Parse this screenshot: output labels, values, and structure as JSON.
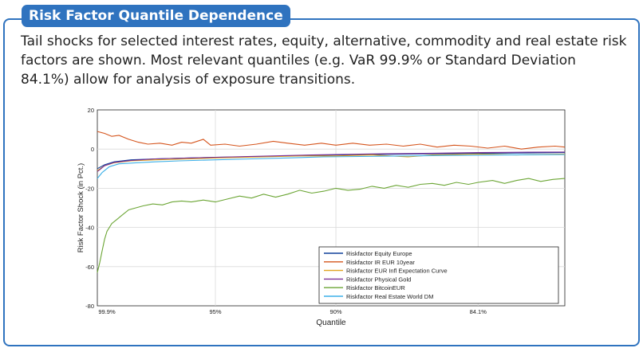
{
  "panel": {
    "title": "Risk Factor Quantile Dependence",
    "description": "Tail shocks for selected interest rates, equity, alternative, commodity and real estate risk factors are shown. Most relevant quantiles (e.g. VaR 99.9% or Standard Deviation 84.1%) allow for analysis of exposure transitions."
  },
  "chart_data": {
    "type": "line",
    "xlabel": "Quantile",
    "ylabel": "Risk Factor Shock (in Pct.)",
    "ylim": [
      -80,
      20
    ],
    "yticks": [
      20,
      0,
      -20,
      -40,
      -60,
      -80
    ],
    "xticks": [
      "99.9%",
      "95%",
      "90%",
      "84.1%"
    ],
    "grid": true,
    "legend_position": "bottom-right",
    "series": [
      {
        "name": "Riskfactor Equity Europe",
        "color": "#0f3f9a",
        "points": [
          [
            99.9,
            -10
          ],
          [
            99.6,
            -8
          ],
          [
            99.2,
            -6.5
          ],
          [
            98.5,
            -5.5
          ],
          [
            97.5,
            -5
          ],
          [
            96,
            -4.5
          ],
          [
            95,
            -4.2
          ],
          [
            93,
            -3.8
          ],
          [
            91,
            -3.3
          ],
          [
            90,
            -3
          ],
          [
            88,
            -2.7
          ],
          [
            86,
            -2.4
          ],
          [
            84.1,
            -2.2
          ],
          [
            82,
            -2
          ],
          [
            80.5,
            -1.8
          ]
        ]
      },
      {
        "name": "Riskfactor IR EUR 10year",
        "color": "#d5541c",
        "points": [
          [
            99.9,
            9
          ],
          [
            99.6,
            8
          ],
          [
            99.3,
            6.5
          ],
          [
            99,
            7
          ],
          [
            98.6,
            5
          ],
          [
            98.2,
            3.5
          ],
          [
            97.8,
            2.5
          ],
          [
            97.3,
            3
          ],
          [
            96.8,
            2
          ],
          [
            96.4,
            3.5
          ],
          [
            96,
            3
          ],
          [
            95.5,
            5
          ],
          [
            95.2,
            2
          ],
          [
            94.6,
            2.5
          ],
          [
            94,
            1.5
          ],
          [
            93.3,
            2.5
          ],
          [
            92.6,
            4
          ],
          [
            92,
            3
          ],
          [
            91.3,
            2
          ],
          [
            90.6,
            3
          ],
          [
            90,
            2
          ],
          [
            89.3,
            3
          ],
          [
            88.6,
            2
          ],
          [
            87.9,
            2.5
          ],
          [
            87.2,
            1.5
          ],
          [
            86.5,
            2.5
          ],
          [
            85.8,
            1
          ],
          [
            85.1,
            2
          ],
          [
            84.4,
            1.5
          ],
          [
            83.7,
            0.5
          ],
          [
            83,
            1.5
          ],
          [
            82.3,
            0
          ],
          [
            81.6,
            1
          ],
          [
            80.9,
            1.5
          ],
          [
            80.5,
            1
          ]
        ]
      },
      {
        "name": "Riskfactor EUR Infl Expectation Curve",
        "color": "#e0a320",
        "points": [
          [
            99.9,
            -11
          ],
          [
            99.6,
            -8.5
          ],
          [
            99.2,
            -7
          ],
          [
            98.5,
            -6
          ],
          [
            97.5,
            -5.5
          ],
          [
            96,
            -5
          ],
          [
            95,
            -4.5
          ],
          [
            93,
            -4
          ],
          [
            91.5,
            -3.5
          ],
          [
            90,
            -3.5
          ],
          [
            88.5,
            -3
          ],
          [
            87,
            -4
          ],
          [
            86,
            -3
          ],
          [
            84.1,
            -2.5
          ],
          [
            82.5,
            -3
          ],
          [
            80.5,
            -2.5
          ]
        ]
      },
      {
        "name": "Riskfactor Physical Gold",
        "color": "#7b2f96",
        "points": [
          [
            99.9,
            -11.5
          ],
          [
            99.6,
            -8.5
          ],
          [
            99.2,
            -6.8
          ],
          [
            98.5,
            -5.8
          ],
          [
            97.5,
            -5
          ],
          [
            96,
            -4.5
          ],
          [
            95,
            -4.2
          ],
          [
            93,
            -3.6
          ],
          [
            91,
            -3
          ],
          [
            90,
            -2.8
          ],
          [
            88,
            -2.4
          ],
          [
            86,
            -2.1
          ],
          [
            84.1,
            -1.8
          ],
          [
            82,
            -1.6
          ],
          [
            80.5,
            -1.5
          ]
        ]
      },
      {
        "name": "Riskfactor BitcoinEUR",
        "color": "#6ba534",
        "points": [
          [
            99.9,
            -63
          ],
          [
            99.8,
            -58
          ],
          [
            99.7,
            -52
          ],
          [
            99.6,
            -46
          ],
          [
            99.5,
            -42
          ],
          [
            99.3,
            -38
          ],
          [
            99.1,
            -36
          ],
          [
            98.9,
            -34
          ],
          [
            98.6,
            -31
          ],
          [
            98.3,
            -30
          ],
          [
            98,
            -29
          ],
          [
            97.6,
            -28
          ],
          [
            97.2,
            -28.5
          ],
          [
            96.8,
            -27
          ],
          [
            96.4,
            -26.5
          ],
          [
            96,
            -27
          ],
          [
            95.5,
            -26
          ],
          [
            95,
            -27
          ],
          [
            94.5,
            -25.5
          ],
          [
            94,
            -24
          ],
          [
            93.5,
            -25
          ],
          [
            93,
            -23
          ],
          [
            92.5,
            -24.5
          ],
          [
            92,
            -23
          ],
          [
            91.5,
            -21
          ],
          [
            91,
            -22.5
          ],
          [
            90.5,
            -21.5
          ],
          [
            90,
            -20
          ],
          [
            89.5,
            -21
          ],
          [
            89,
            -20.5
          ],
          [
            88.5,
            -19
          ],
          [
            88,
            -20
          ],
          [
            87.5,
            -18.5
          ],
          [
            87,
            -19.5
          ],
          [
            86.5,
            -18
          ],
          [
            86,
            -17.5
          ],
          [
            85.5,
            -18.5
          ],
          [
            85,
            -17
          ],
          [
            84.5,
            -18
          ],
          [
            84.1,
            -17
          ],
          [
            83.5,
            -16
          ],
          [
            83,
            -17.5
          ],
          [
            82.5,
            -16
          ],
          [
            82,
            -15
          ],
          [
            81.5,
            -16.5
          ],
          [
            81,
            -15.5
          ],
          [
            80.5,
            -15
          ]
        ]
      },
      {
        "name": "Riskfactor Real Estate World DM",
        "color": "#3cb0e8",
        "points": [
          [
            99.9,
            -15
          ],
          [
            99.7,
            -12
          ],
          [
            99.4,
            -9
          ],
          [
            99,
            -7.5
          ],
          [
            98.3,
            -7
          ],
          [
            97.5,
            -6.5
          ],
          [
            96.5,
            -6
          ],
          [
            95,
            -5.5
          ],
          [
            93.5,
            -5
          ],
          [
            92,
            -4.5
          ],
          [
            90.5,
            -4
          ],
          [
            89,
            -3.8
          ],
          [
            87,
            -3.5
          ],
          [
            85,
            -3.2
          ],
          [
            83,
            -3
          ],
          [
            80.5,
            -2.8
          ]
        ]
      }
    ]
  }
}
